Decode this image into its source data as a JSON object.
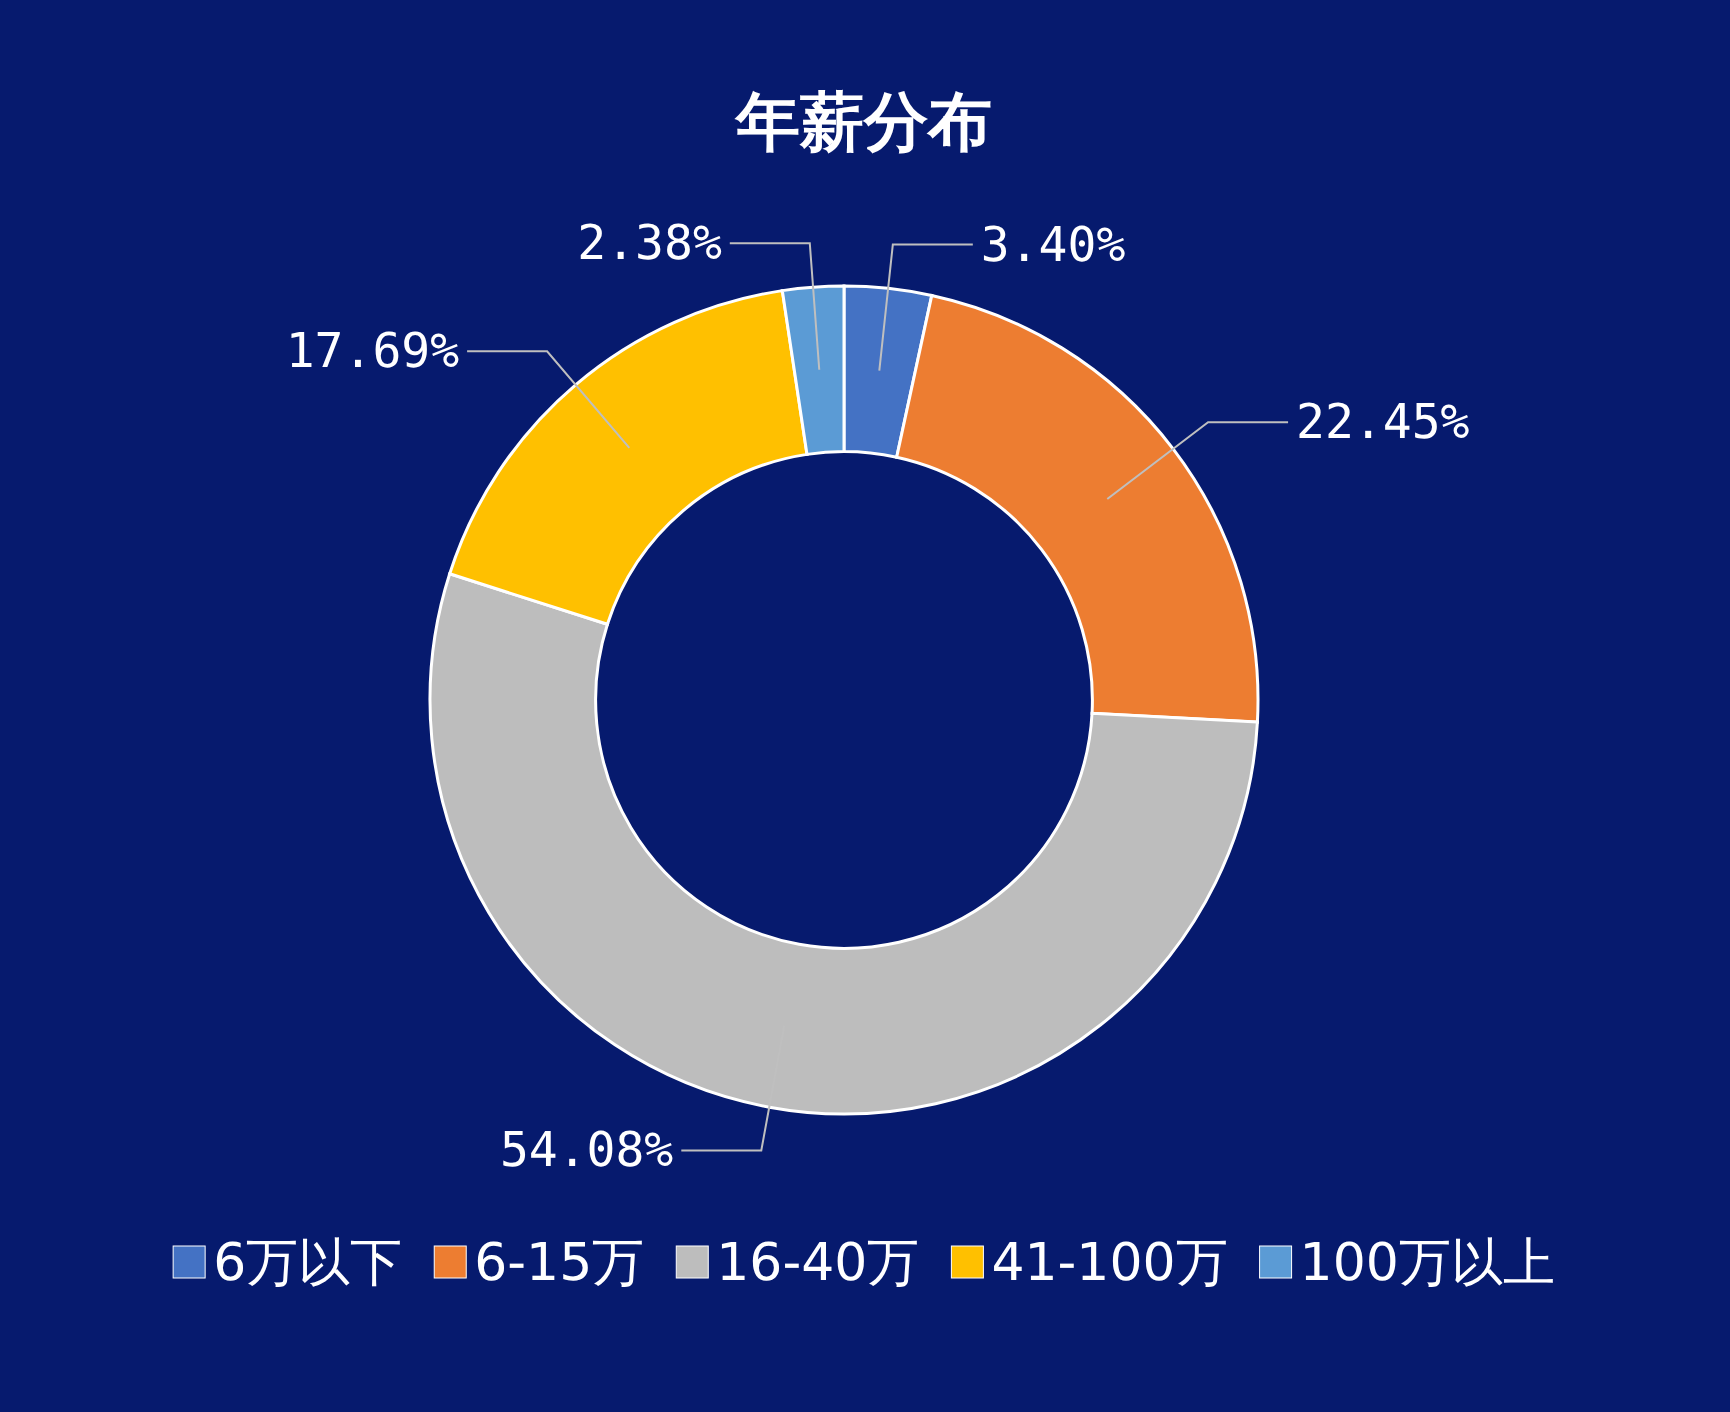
{
  "chart_data": {
    "type": "donut",
    "title": "年薪分布",
    "categories": [
      "6万以下",
      "6-15万",
      "16-40万",
      "41-100万",
      "100万以上"
    ],
    "values": [
      3.4,
      22.45,
      54.08,
      17.69,
      2.38
    ],
    "value_labels": [
      "3.40%",
      "22.45%",
      "54.08%",
      "17.69%",
      "2.38%"
    ],
    "colors": [
      "#4472c4",
      "#ed7d31",
      "#bdbdbd",
      "#ffc000",
      "#5b9bd5"
    ],
    "legend": "bottom"
  }
}
